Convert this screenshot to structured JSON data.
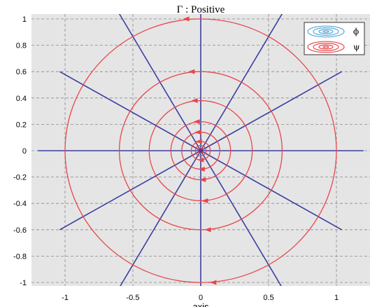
{
  "chart_data": {
    "type": "line",
    "title": "Γ : Positive",
    "xlabel": "axis",
    "ylabel": "",
    "xlim": [
      -1.2,
      1.2
    ],
    "ylim": [
      -1,
      1
    ],
    "xticks": [
      -1,
      -0.5,
      0,
      0.5,
      1
    ],
    "xtick_labels": [
      "-1",
      "-0.5",
      "0",
      "0.5",
      "1"
    ],
    "yticks": [
      1,
      0.8,
      0.6,
      0.4,
      0.2,
      0,
      -0.2,
      -0.4,
      -0.6,
      -0.8,
      -1
    ],
    "ytick_labels": [
      "1",
      "0.8",
      "0.6",
      "0.4",
      "0.2",
      "0",
      "-0.2",
      "-0.4",
      "-0.6",
      "-0.8",
      "-1"
    ],
    "grid": true,
    "legend_position": "top-right",
    "legend": [
      {
        "label": "ϕ",
        "color": "#5aa7d8"
      },
      {
        "label": "ψ",
        "color": "#e8464c"
      }
    ],
    "series": [
      {
        "kind": "radial-lines",
        "color": "#3b3fa0",
        "angles_deg": [
          0,
          30,
          60,
          90,
          120,
          150,
          180,
          210,
          240,
          270,
          300,
          330
        ],
        "length": 1.2
      },
      {
        "kind": "concentric-circles",
        "color": "#e8464c",
        "radii": [
          0.02,
          0.04,
          0.07,
          0.14,
          0.22,
          0.38,
          0.6,
          1.0
        ],
        "direction": "counterclockwise"
      }
    ]
  }
}
